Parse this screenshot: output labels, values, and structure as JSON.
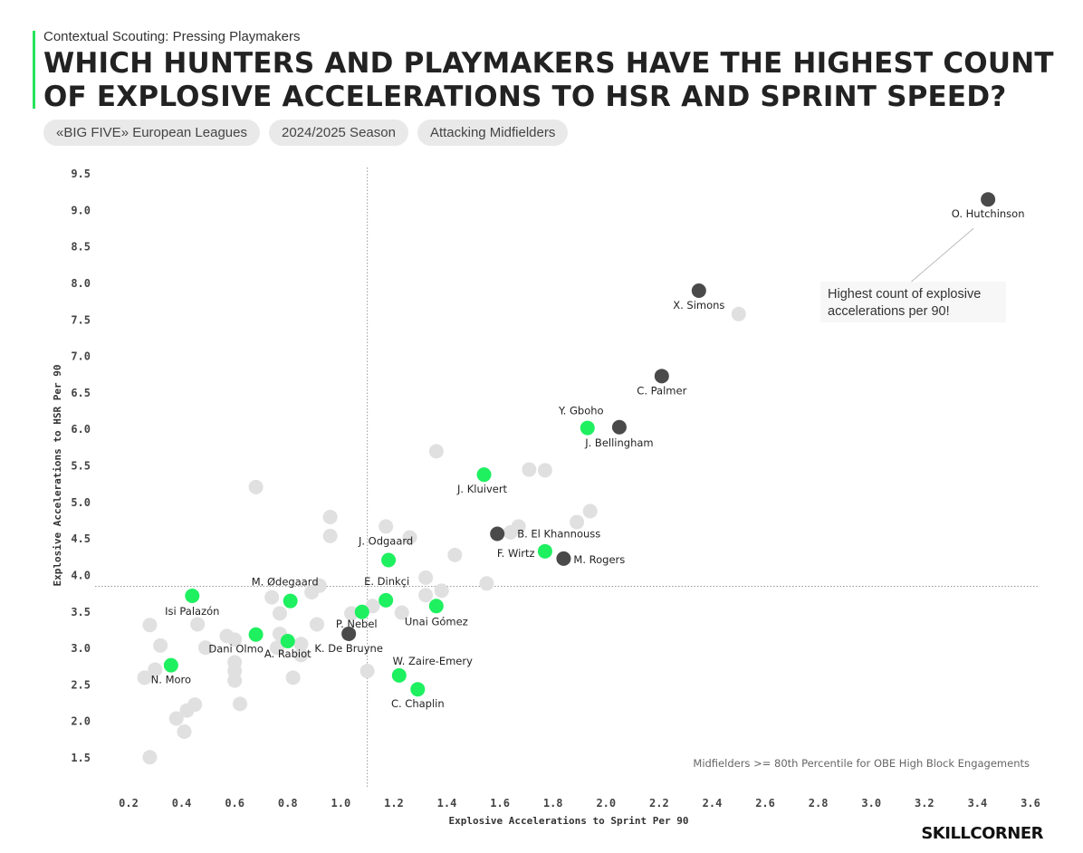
{
  "header": {
    "eyebrow": "Contextual Scouting: Pressing Playmakers",
    "title": "Which Hunters and Playmakers have the highest count of explosive accelerations to HSR and sprint speed?",
    "pills": [
      "«BIG FIVE» European Leagues",
      "2024/2025 Season",
      "Attacking Midfielders"
    ]
  },
  "brand": "SKILLCORNER",
  "colors": {
    "green": "#1ef060",
    "dark": "#4a4a4a",
    "grey": "#e0e0e0",
    "accent": "#26e45a"
  },
  "chart_data": {
    "type": "scatter",
    "xlabel": "Explosive Accelerations to Sprint Per 90",
    "ylabel": "Explosive Accelerations to HSR Per 90",
    "xlim": [
      0.2,
      3.6
    ],
    "ylim": [
      1.5,
      9.5
    ],
    "xticks": [
      "0.2",
      "0.4",
      "0.6",
      "0.8",
      "1.0",
      "1.2",
      "1.4",
      "1.6",
      "1.8",
      "2.0",
      "2.2",
      "2.4",
      "2.6",
      "2.8",
      "3.0",
      "3.2",
      "3.4",
      "3.6"
    ],
    "yticks": [
      "1.5",
      "2.0",
      "2.5",
      "3.0",
      "3.5",
      "4.0",
      "4.5",
      "5.0",
      "5.5",
      "6.0",
      "6.5",
      "7.0",
      "7.5",
      "8.0",
      "8.5",
      "9.0",
      "9.5"
    ],
    "reference_lines": {
      "x": 1.1,
      "y": 3.85
    },
    "annotation": "Highest count of explosive accelerations per 90!",
    "footnote": "Midfielders >= 80th Percentile for OBE High Block Engagements",
    "labeled": [
      {
        "name": "O. Hutchinson",
        "x": 3.44,
        "y": 9.15,
        "group": "dark"
      },
      {
        "name": "X. Simons",
        "x": 2.35,
        "y": 7.9,
        "group": "dark"
      },
      {
        "name": "C. Palmer",
        "x": 2.21,
        "y": 6.73,
        "group": "dark"
      },
      {
        "name": "J. Bellingham",
        "x": 2.05,
        "y": 6.03,
        "group": "dark"
      },
      {
        "name": "Y. Gboho",
        "x": 1.93,
        "y": 6.02,
        "group": "green"
      },
      {
        "name": "J. Kluivert",
        "x": 1.54,
        "y": 5.38,
        "group": "green"
      },
      {
        "name": "B. El Khannouss",
        "x": 1.59,
        "y": 4.57,
        "group": "dark"
      },
      {
        "name": "F. Wirtz",
        "x": 1.77,
        "y": 4.33,
        "group": "green"
      },
      {
        "name": "M. Rogers",
        "x": 1.84,
        "y": 4.23,
        "group": "dark"
      },
      {
        "name": "J. Odgaard",
        "x": 1.18,
        "y": 4.21,
        "group": "green"
      },
      {
        "name": "E. Dinkçi",
        "x": 1.17,
        "y": 3.66,
        "group": "green"
      },
      {
        "name": "M. Ødegaard",
        "x": 0.81,
        "y": 3.65,
        "group": "green"
      },
      {
        "name": "Unai Gómez",
        "x": 1.36,
        "y": 3.58,
        "group": "green"
      },
      {
        "name": "Isi Palazón",
        "x": 0.44,
        "y": 3.72,
        "group": "green"
      },
      {
        "name": "P. Nebel",
        "x": 1.08,
        "y": 3.5,
        "group": "green"
      },
      {
        "name": "K. De Bruyne",
        "x": 1.03,
        "y": 3.2,
        "group": "dark"
      },
      {
        "name": "Dani Olmo",
        "x": 0.68,
        "y": 3.19,
        "group": "green"
      },
      {
        "name": "A. Rabiot",
        "x": 0.8,
        "y": 3.1,
        "group": "green"
      },
      {
        "name": "N. Moro",
        "x": 0.36,
        "y": 2.77,
        "group": "green"
      },
      {
        "name": "W. Zaire-Emery",
        "x": 1.22,
        "y": 2.63,
        "group": "green"
      },
      {
        "name": "C. Chaplin",
        "x": 1.29,
        "y": 2.44,
        "group": "green"
      }
    ],
    "others": [
      [
        2.5,
        7.58
      ],
      [
        1.36,
        5.7
      ],
      [
        1.71,
        5.45
      ],
      [
        1.77,
        5.44
      ],
      [
        0.68,
        5.21
      ],
      [
        1.94,
        4.88
      ],
      [
        1.89,
        4.73
      ],
      [
        0.96,
        4.8
      ],
      [
        0.96,
        4.54
      ],
      [
        1.67,
        4.67
      ],
      [
        1.64,
        4.59
      ],
      [
        1.17,
        4.67
      ],
      [
        1.26,
        4.52
      ],
      [
        1.43,
        4.28
      ],
      [
        1.32,
        3.97
      ],
      [
        1.55,
        3.89
      ],
      [
        0.92,
        3.86
      ],
      [
        0.89,
        3.77
      ],
      [
        1.32,
        3.73
      ],
      [
        1.38,
        3.79
      ],
      [
        1.12,
        3.58
      ],
      [
        1.23,
        3.49
      ],
      [
        0.74,
        3.7
      ],
      [
        0.77,
        3.48
      ],
      [
        1.04,
        3.48
      ],
      [
        0.28,
        3.32
      ],
      [
        0.46,
        3.33
      ],
      [
        0.91,
        3.33
      ],
      [
        0.57,
        3.17
      ],
      [
        0.6,
        3.12
      ],
      [
        0.77,
        3.2
      ],
      [
        0.85,
        3.06
      ],
      [
        0.32,
        3.04
      ],
      [
        0.49,
        3.01
      ],
      [
        0.76,
        3.01
      ],
      [
        0.85,
        2.91
      ],
      [
        0.6,
        2.81
      ],
      [
        0.6,
        2.69
      ],
      [
        0.3,
        2.71
      ],
      [
        1.1,
        2.69
      ],
      [
        0.6,
        2.56
      ],
      [
        0.26,
        2.6
      ],
      [
        0.82,
        2.6
      ],
      [
        0.45,
        2.23
      ],
      [
        0.62,
        2.24
      ],
      [
        0.42,
        2.15
      ],
      [
        0.38,
        2.04
      ],
      [
        0.41,
        1.86
      ],
      [
        0.28,
        1.51
      ]
    ]
  }
}
